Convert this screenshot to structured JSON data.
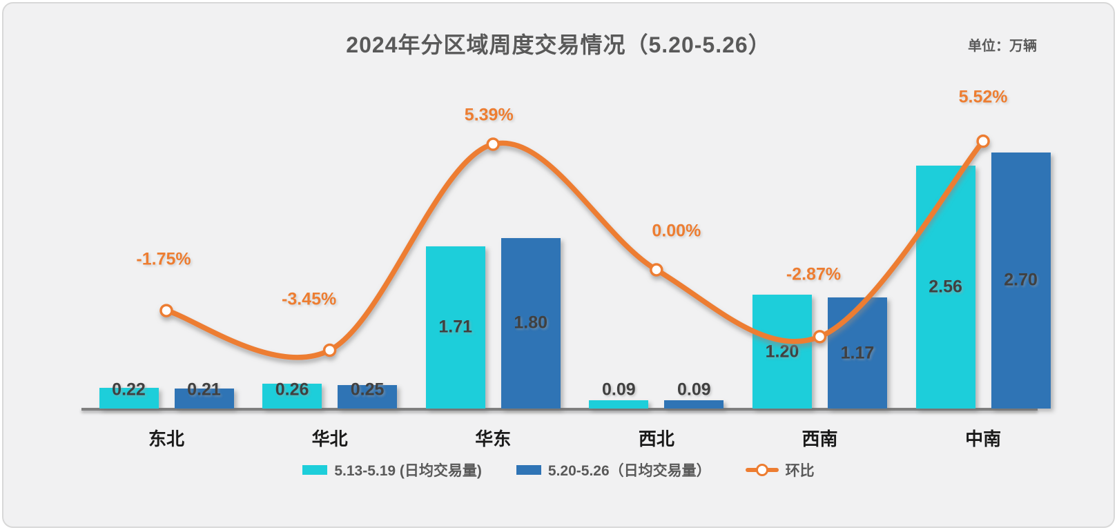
{
  "page": {
    "title": "2024年分区域周度交易情况（5.20-5.26）",
    "unit_label": "单位：万辆"
  },
  "chart_data": {
    "type": "combo_bar_line",
    "title": "2024年分区域周度交易情况（5.20-5.26）",
    "unit": "万辆",
    "categories": [
      "东北",
      "华北",
      "华东",
      "西北",
      "西南",
      "中南"
    ],
    "series": [
      {
        "name": "5.13-5.19 (日均交易量)",
        "type": "bar",
        "color": "#1DCEDA",
        "values": [
          0.22,
          0.26,
          1.71,
          0.09,
          1.2,
          2.56
        ]
      },
      {
        "name": "5.20-5.26（日均交易量）",
        "type": "bar",
        "color": "#2F74B5",
        "values": [
          0.21,
          0.25,
          1.8,
          0.09,
          1.17,
          2.7
        ]
      },
      {
        "name": "环比",
        "type": "line",
        "color": "#ED7D31",
        "unit": "%",
        "values": [
          -1.75,
          -3.45,
          5.39,
          0.0,
          -2.87,
          5.52
        ],
        "point_labels": [
          "-1.75%",
          "-3.45%",
          "5.39%",
          "0.00%",
          "-2.87%",
          "5.52%"
        ]
      }
    ],
    "value_label_color": "#404040",
    "category_label_color": "#1A1A1A",
    "axis_color": "#7F7F7F",
    "marker_style": "white-circle-orange-ring",
    "grid": false,
    "legend_position": "bottom"
  },
  "legend": {
    "items": [
      {
        "label": "5.13-5.19 (日均交易量)",
        "swatch": "bar",
        "color": "#1DCEDA"
      },
      {
        "label": "5.20-5.26（日均交易量）",
        "swatch": "bar",
        "color": "#2F74B5"
      },
      {
        "label": "环比",
        "swatch": "line-marker",
        "color": "#ED7D31"
      }
    ]
  }
}
